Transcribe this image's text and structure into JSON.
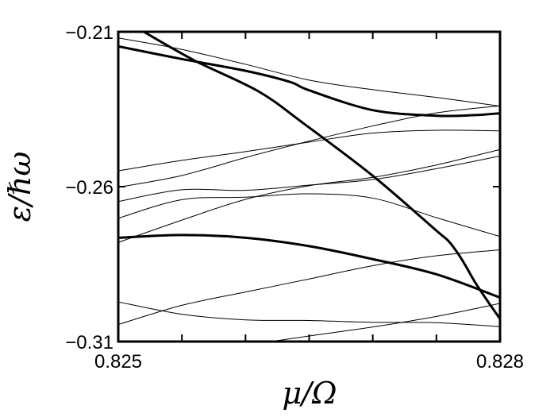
{
  "chart_data": {
    "type": "line",
    "title": "",
    "xlabel": "μ/Ω",
    "ylabel": "ε/ℏω",
    "xlim": [
      0.825,
      0.828
    ],
    "ylim": [
      -0.31,
      -0.21
    ],
    "x_ticks": [
      0.825,
      0.8255,
      0.826,
      0.8265,
      0.827,
      0.8275,
      0.828
    ],
    "x_tick_labels": [
      {
        "value": 0.825,
        "label": "0.825"
      },
      {
        "value": 0.828,
        "label": "0.828"
      }
    ],
    "y_ticks": [
      -0.21,
      -0.26,
      -0.31
    ],
    "y_tick_labels": [
      {
        "value": -0.21,
        "label": "−0.21"
      },
      {
        "value": -0.26,
        "label": "−0.26"
      },
      {
        "value": -0.31,
        "label": "−0.31"
      }
    ],
    "grid": false,
    "series": [
      {
        "style": "thick",
        "points": [
          [
            0.825,
            -0.2147
          ],
          [
            0.8255,
            -0.2188
          ],
          [
            0.826,
            -0.2226
          ],
          [
            0.82635,
            -0.2262
          ],
          [
            0.8265,
            -0.2289
          ],
          [
            0.827,
            -0.2353
          ],
          [
            0.8275,
            -0.2371
          ],
          [
            0.8278,
            -0.2369
          ],
          [
            0.828,
            -0.2363
          ]
        ]
      },
      {
        "style": "thick",
        "points": [
          [
            0.8252,
            -0.21
          ],
          [
            0.8256,
            -0.2193
          ],
          [
            0.8261,
            -0.2292
          ],
          [
            0.82645,
            -0.2394
          ],
          [
            0.827,
            -0.2565
          ],
          [
            0.8275,
            -0.2742
          ],
          [
            0.8276,
            -0.2778
          ],
          [
            0.8277,
            -0.2835
          ],
          [
            0.8278,
            -0.2906
          ],
          [
            0.8279,
            -0.2968
          ],
          [
            0.828,
            -0.3027
          ]
        ]
      },
      {
        "style": "thick",
        "points": [
          [
            0.825,
            -0.2765
          ],
          [
            0.8255,
            -0.2756
          ],
          [
            0.826,
            -0.2765
          ],
          [
            0.8265,
            -0.2792
          ],
          [
            0.827,
            -0.2834
          ],
          [
            0.8275,
            -0.2883
          ],
          [
            0.828,
            -0.2958
          ]
        ]
      },
      {
        "style": "thin",
        "points": [
          [
            0.825,
            -0.212
          ],
          [
            0.8255,
            -0.2157
          ],
          [
            0.826,
            -0.2205
          ],
          [
            0.8265,
            -0.2256
          ],
          [
            0.827,
            -0.2287
          ],
          [
            0.8275,
            -0.2312
          ],
          [
            0.828,
            -0.234
          ]
        ]
      },
      {
        "style": "thin",
        "points": [
          [
            0.825,
            -0.2549
          ],
          [
            0.8255,
            -0.2515
          ],
          [
            0.826,
            -0.2487
          ],
          [
            0.8265,
            -0.2456
          ],
          [
            0.827,
            -0.2427
          ],
          [
            0.8275,
            -0.2418
          ],
          [
            0.828,
            -0.242
          ]
        ]
      },
      {
        "style": "thin",
        "points": [
          [
            0.825,
            -0.2602
          ],
          [
            0.8255,
            -0.2564
          ],
          [
            0.826,
            -0.2506
          ],
          [
            0.8265,
            -0.2453
          ],
          [
            0.827,
            -0.2404
          ],
          [
            0.8275,
            -0.2362
          ],
          [
            0.828,
            -0.2339
          ]
        ]
      },
      {
        "style": "thin",
        "points": [
          [
            0.825,
            -0.2648
          ],
          [
            0.8255,
            -0.261
          ],
          [
            0.826,
            -0.2612
          ],
          [
            0.8265,
            -0.2595
          ],
          [
            0.827,
            -0.2577
          ],
          [
            0.8275,
            -0.2542
          ],
          [
            0.828,
            -0.2501
          ]
        ]
      },
      {
        "style": "thin",
        "points": [
          [
            0.825,
            -0.2702
          ],
          [
            0.8255,
            -0.2642
          ],
          [
            0.826,
            -0.2634
          ],
          [
            0.8265,
            -0.2623
          ],
          [
            0.827,
            -0.2637
          ],
          [
            0.8275,
            -0.27
          ],
          [
            0.828,
            -0.2761
          ]
        ]
      },
      {
        "style": "thin",
        "points": [
          [
            0.825,
            -0.278
          ],
          [
            0.8255,
            -0.2708
          ],
          [
            0.826,
            -0.2641
          ],
          [
            0.8265,
            -0.2597
          ],
          [
            0.827,
            -0.257
          ],
          [
            0.8275,
            -0.253
          ],
          [
            0.828,
            -0.248
          ]
        ]
      },
      {
        "style": "thin",
        "points": [
          [
            0.825,
            -0.3045
          ],
          [
            0.8255,
            -0.2983
          ],
          [
            0.826,
            -0.294
          ],
          [
            0.8265,
            -0.2898
          ],
          [
            0.827,
            -0.2855
          ],
          [
            0.8275,
            -0.2823
          ],
          [
            0.828,
            -0.2804
          ]
        ]
      },
      {
        "style": "thin",
        "points": [
          [
            0.825,
            -0.2972
          ],
          [
            0.8255,
            -0.3012
          ],
          [
            0.826,
            -0.303
          ],
          [
            0.8265,
            -0.3032
          ],
          [
            0.827,
            -0.3038
          ],
          [
            0.8275,
            -0.3039
          ],
          [
            0.828,
            -0.3052
          ]
        ]
      },
      {
        "style": "thin",
        "points": [
          [
            0.8262,
            -0.31
          ],
          [
            0.8265,
            -0.3082
          ],
          [
            0.827,
            -0.3053
          ],
          [
            0.8275,
            -0.3019
          ],
          [
            0.828,
            -0.2977
          ]
        ]
      }
    ]
  }
}
